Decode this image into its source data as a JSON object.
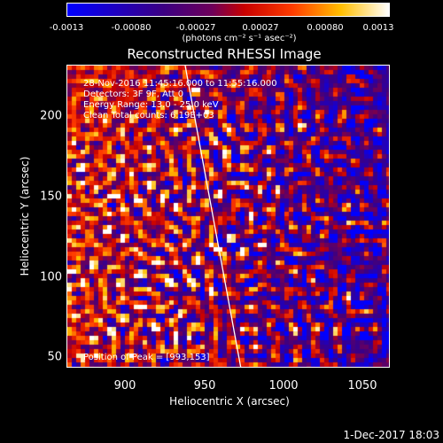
{
  "colorbar": {
    "ticks": [
      "-0.0013",
      "-0.00080",
      "-0.00027",
      "0.00027",
      "0.00080",
      "0.0013"
    ],
    "units": "(photons cm⁻² s⁻¹ asec⁻²)"
  },
  "plot": {
    "title": "Reconstructed RHESSI Image",
    "info": {
      "time": "28-Nov-2016 11:45:16.000 to 11:55:16.000",
      "detectors": "Detectors: 3F 9F, Att 0",
      "energy": "Energy Range: 13.0 - 25.0 keV",
      "method": "Clean    Total counts: 6.19E+03",
      "peak": "Position of Peak = [993,153]"
    },
    "limb_color": "#ffffff"
  },
  "footer": {
    "date": "1-Dec-2017 18:03"
  },
  "chart_data": {
    "type": "heatmap",
    "title": "Reconstructed RHESSI Image",
    "xlabel": "Heliocentric X (arcsec)",
    "ylabel": "Heliocentric Y (arcsec)",
    "xlim": [
      865,
      1070
    ],
    "ylim": [
      40,
      233
    ],
    "x_ticks": [
      "900",
      "950",
      "1000",
      "1050"
    ],
    "y_ticks": [
      "50",
      "100",
      "150",
      "200"
    ],
    "colorbar_range": [
      -0.0013,
      0.0013
    ],
    "peak_position": [
      993,
      153
    ]
  }
}
